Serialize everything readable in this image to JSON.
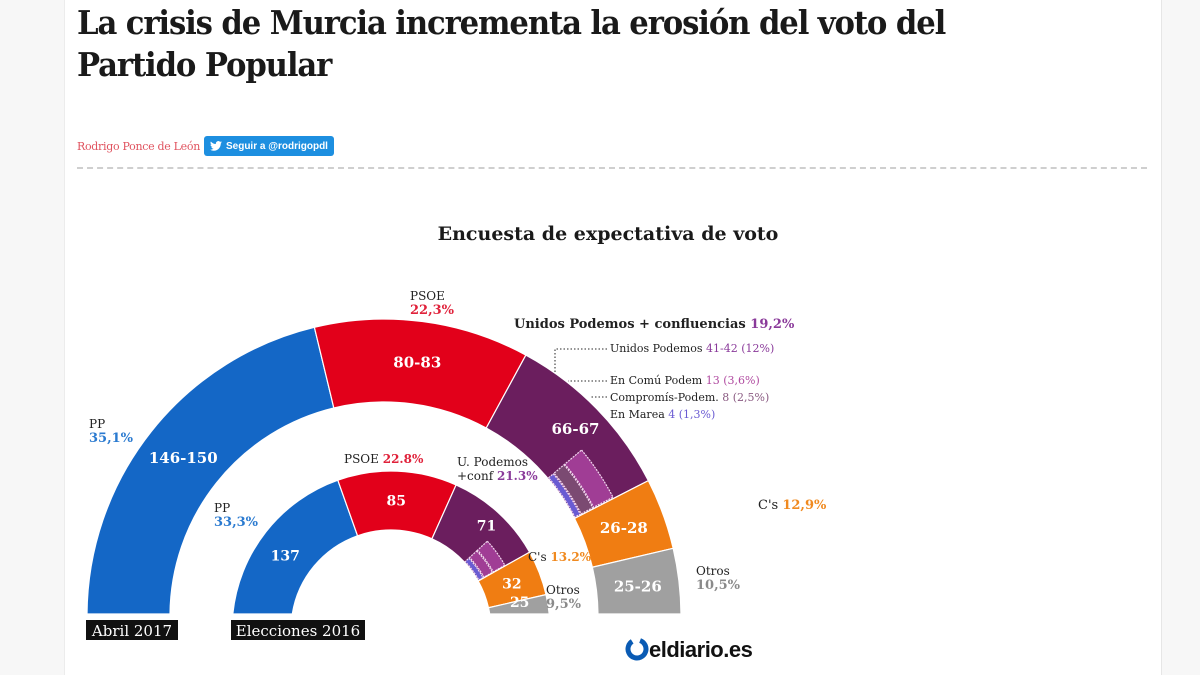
{
  "article": {
    "headline": "La crisis de Murcia incrementa la erosión del voto del Partido Popular",
    "author": "Rodrigo Ponce de León",
    "follow_label": "Seguir a @rodrigopdl"
  },
  "brand": {
    "logo_text": "eldiario.es",
    "logo_color": "#0a5bb4"
  },
  "chart_data": {
    "type": "pie",
    "subtype": "hemicycle",
    "title": "Encuesta de expectativa de voto",
    "total_seats": 350,
    "series": [
      {
        "name": "Abril 2017",
        "ring": "outer",
        "parties": [
          {
            "party": "PP",
            "label_name": "PP",
            "seats_label": "146-150",
            "seats": 148,
            "pct": "35,1%",
            "color": "#1467c6",
            "pct_color": "#2a7ad0"
          },
          {
            "party": "PSOE",
            "label_name": "PSOE",
            "seats_label": "80-83",
            "seats": 81.5,
            "pct": "22,3%",
            "color": "#e2001a",
            "pct_color": "#e0213a"
          },
          {
            "party": "Unidos Podemos + confluencias",
            "label_name": "Unidos Podemos + confluencias",
            "seats_label": "66-67",
            "seats": 66.5,
            "pct": "19,2%",
            "color": "#6b1e5e",
            "pct_color": "#8a3a9a"
          },
          {
            "party": "C's",
            "label_name": "C's",
            "seats_label": "26-28",
            "seats": 27,
            "pct": "12,9%",
            "color": "#f07d12",
            "pct_color": "#f08a20"
          },
          {
            "party": "Otros",
            "label_name": "Otros",
            "seats_label": "25-26",
            "seats": 25.5,
            "pct": "10,5%",
            "color": "#a0a0a0",
            "pct_color": "#8a8a8a"
          }
        ],
        "confluences": [
          {
            "name": "Unidos Podemos",
            "value": "41-42",
            "pct": "(12%)",
            "seats": 41.5,
            "color": "#6b1e5e",
            "value_color": "#8a3a9a"
          },
          {
            "name": "En Comú Podem",
            "value": "13",
            "pct": "(3,6%)",
            "seats": 13,
            "color": "#a03d95",
            "value_color": "#b04aa0"
          },
          {
            "name": "Compromís-Podem.",
            "value": "8",
            "pct": "(2,5%)",
            "seats": 8,
            "color": "#7b4a72",
            "value_color": "#8a5a82"
          },
          {
            "name": "En Marea",
            "value": "4",
            "pct": "(1,3%)",
            "seats": 4,
            "color": "#6a5bd2",
            "value_color": "#6a5bd2"
          }
        ]
      },
      {
        "name": "Elecciones 2016",
        "ring": "inner",
        "parties": [
          {
            "party": "PP",
            "label_name": "PP",
            "seats_label": "137",
            "seats": 137,
            "pct": "33,3%",
            "color": "#1467c6",
            "pct_color": "#2a7ad0"
          },
          {
            "party": "PSOE",
            "label_name": "PSOE",
            "seats_label": "85",
            "seats": 85,
            "pct": "22.8%",
            "color": "#e2001a",
            "pct_color": "#e0213a"
          },
          {
            "party": "U. Podemos +conf",
            "label_name": "U. Podemos +conf",
            "seats_label": "71",
            "seats": 71,
            "pct": "21.3%",
            "color": "#6b1e5e",
            "pct_color": "#8a3a9a"
          },
          {
            "party": "C's",
            "label_name": "C's",
            "seats_label": "32",
            "seats": 32,
            "pct": "13.2%",
            "color": "#f07d12",
            "pct_color": "#f08a20"
          },
          {
            "party": "Otros",
            "label_name": "Otros",
            "seats_label": "25",
            "seats": 25,
            "pct": "9,5%",
            "color": "#a0a0a0",
            "pct_color": "#8a8a8a"
          }
        ],
        "confluences": [
          {
            "name": "En Comú Podem",
            "seats": 12,
            "color": "#a03d95"
          },
          {
            "name": "Compromís-Podem.",
            "seats": 9,
            "color": "#a03d95"
          },
          {
            "name": "En Marea",
            "seats": 5,
            "color": "#6a5bd2"
          }
        ]
      }
    ],
    "ring_labels": [
      "Abril 2017",
      "Elecciones 2016"
    ]
  }
}
